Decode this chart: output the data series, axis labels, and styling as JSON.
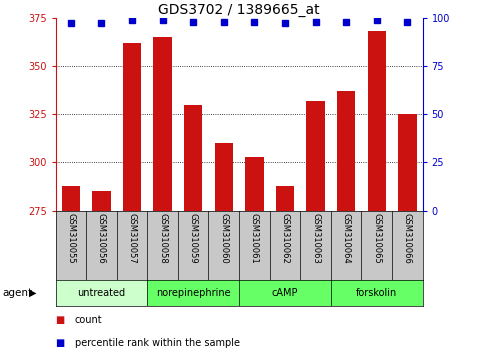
{
  "title": "GDS3702 / 1389665_at",
  "samples": [
    "GSM310055",
    "GSM310056",
    "GSM310057",
    "GSM310058",
    "GSM310059",
    "GSM310060",
    "GSM310061",
    "GSM310062",
    "GSM310063",
    "GSM310064",
    "GSM310065",
    "GSM310066"
  ],
  "counts": [
    288,
    285,
    362,
    365,
    330,
    310,
    303,
    288,
    332,
    337,
    368,
    325
  ],
  "percentiles": [
    97,
    97,
    99,
    99,
    98,
    98,
    98,
    97,
    98,
    98,
    99,
    98
  ],
  "ylim_left": [
    275,
    375
  ],
  "ylim_right": [
    0,
    100
  ],
  "yticks_left": [
    275,
    300,
    325,
    350,
    375
  ],
  "yticks_right": [
    0,
    25,
    50,
    75,
    100
  ],
  "bar_color": "#cc1111",
  "dot_color": "#0000cc",
  "background_color": "#ffffff",
  "agent_groups": [
    {
      "label": "untreated",
      "start": 0,
      "end": 3,
      "color": "#ccffcc"
    },
    {
      "label": "norepinephrine",
      "start": 3,
      "end": 6,
      "color": "#66ff66"
    },
    {
      "label": "cAMP",
      "start": 6,
      "end": 9,
      "color": "#66ff66"
    },
    {
      "label": "forskolin",
      "start": 9,
      "end": 12,
      "color": "#66ff66"
    }
  ],
  "agent_label": "agent",
  "legend_count_label": "count",
  "legend_pct_label": "percentile rank within the sample",
  "title_fontsize": 10,
  "tick_fontsize": 7,
  "sample_fontsize": 6,
  "agent_fontsize": 7,
  "legend_fontsize": 7,
  "sample_bg": "#c8c8c8",
  "gridline_yticks": [
    300,
    325,
    350
  ]
}
